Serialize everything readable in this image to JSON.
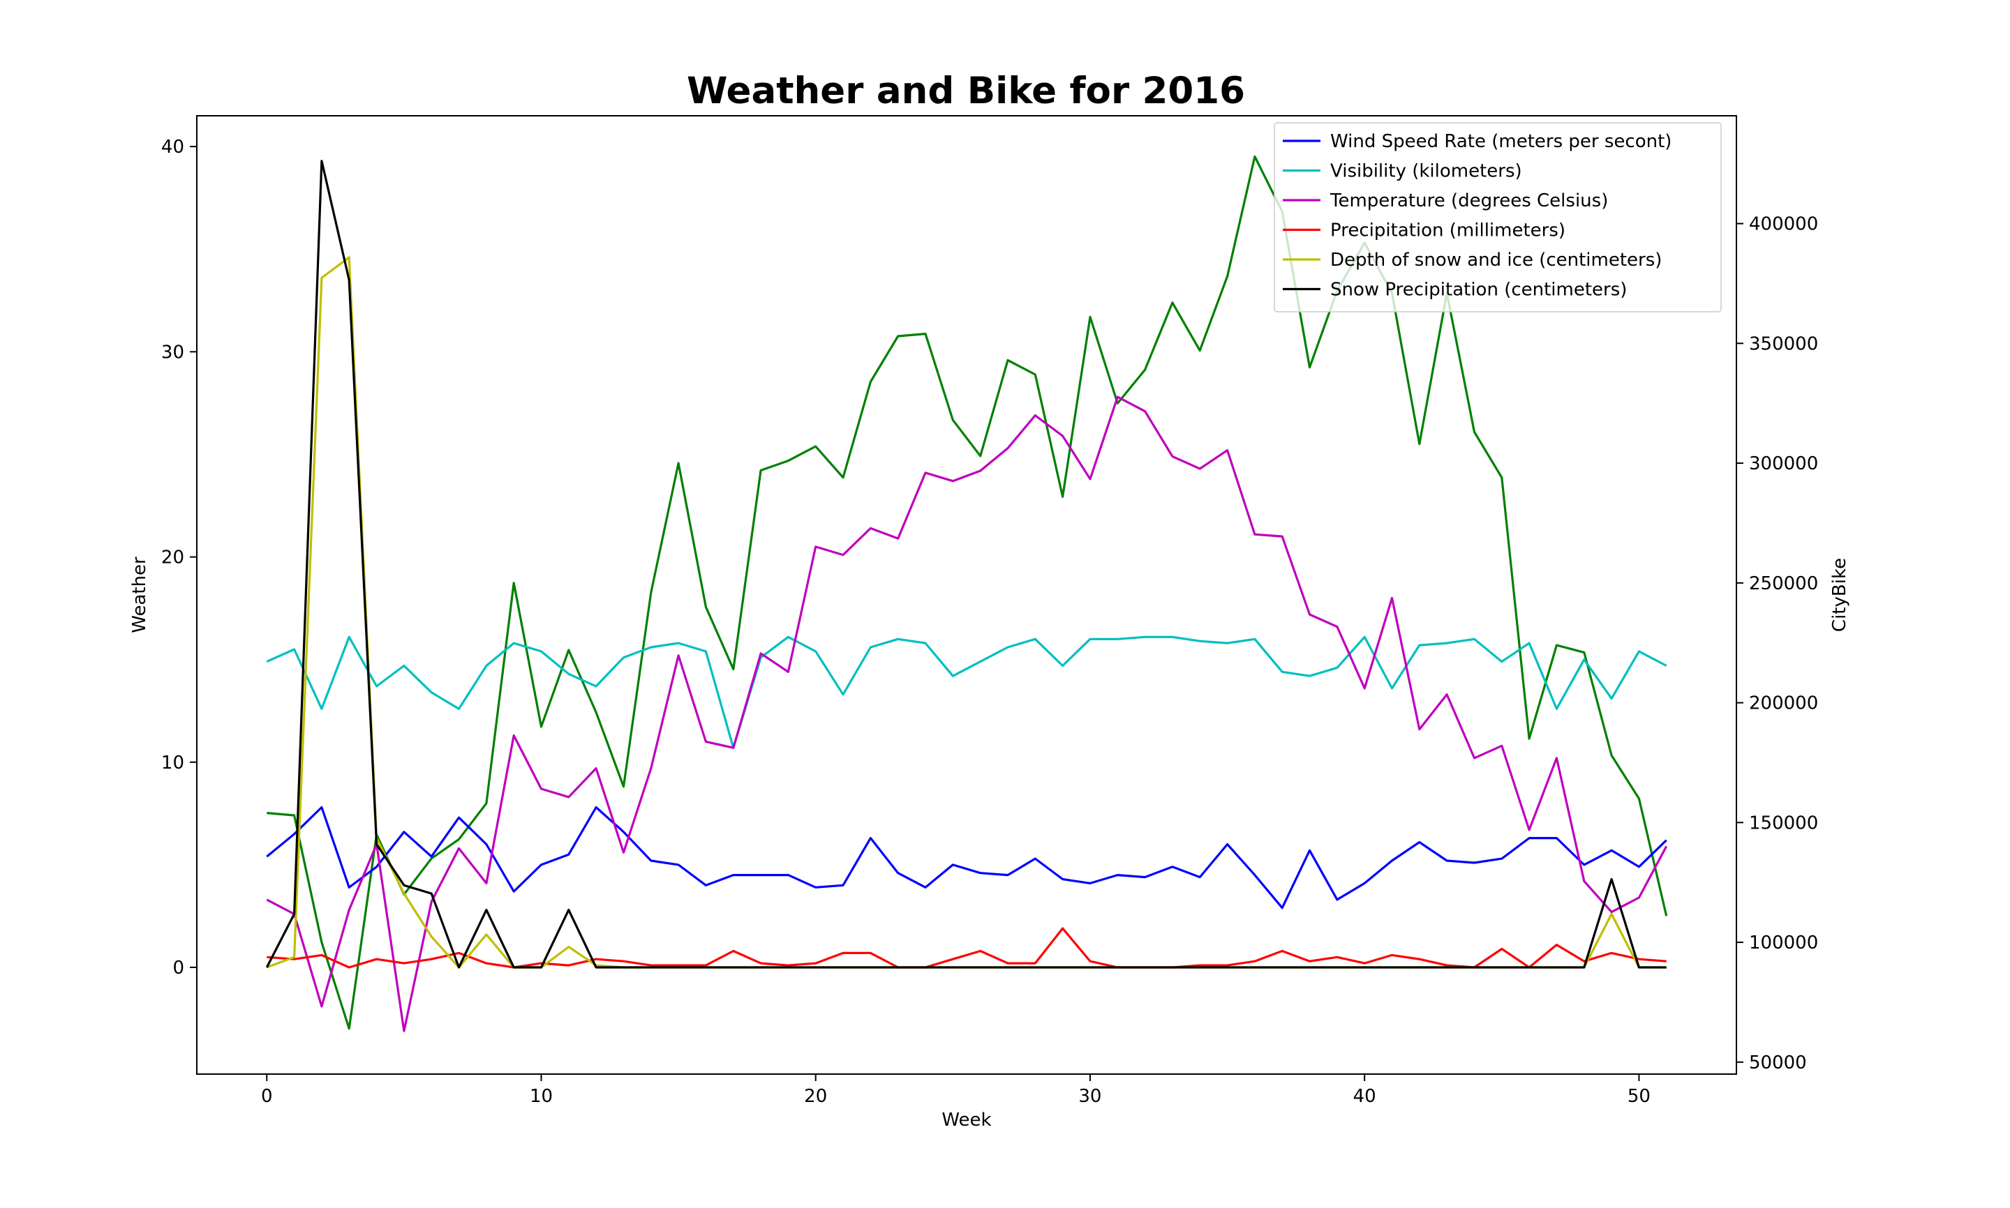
{
  "chart_data": {
    "type": "line",
    "title": "Weather and Bike for 2016",
    "xlabel": "Week",
    "ylabel_left": "Weather",
    "ylabel_right": "CityBike",
    "xlim": [
      -2.55,
      53.55
    ],
    "ylim_left": [
      -5.2,
      41.5
    ],
    "ylim_right": [
      45000,
      445000
    ],
    "xticks": [
      0,
      10,
      20,
      30,
      40,
      50
    ],
    "yticks_left": [
      0,
      10,
      20,
      30,
      40
    ],
    "yticks_right": [
      50000,
      100000,
      150000,
      200000,
      250000,
      300000,
      350000,
      400000
    ],
    "grid": false,
    "legend_position": "top-right",
    "x": [
      0,
      1,
      2,
      3,
      4,
      5,
      6,
      7,
      8,
      9,
      10,
      11,
      12,
      13,
      14,
      15,
      16,
      17,
      18,
      19,
      20,
      21,
      22,
      23,
      24,
      25,
      26,
      27,
      28,
      29,
      30,
      31,
      32,
      33,
      34,
      35,
      36,
      37,
      38,
      39,
      40,
      41,
      42,
      43,
      44,
      45,
      46,
      47,
      48,
      49,
      50,
      51
    ],
    "series": [
      {
        "name": "Wind Speed Rate (meters per secont)",
        "color": "#0000ff",
        "axis": "left",
        "values": [
          5.4,
          6.5,
          7.8,
          3.9,
          4.9,
          6.6,
          5.4,
          7.3,
          6.0,
          3.7,
          5.0,
          5.5,
          7.8,
          6.6,
          5.2,
          5.0,
          4.0,
          4.5,
          4.5,
          4.5,
          3.9,
          4.0,
          6.3,
          4.6,
          3.9,
          5.0,
          4.6,
          4.5,
          5.3,
          4.3,
          4.1,
          4.5,
          4.4,
          4.9,
          4.4,
          6.0,
          4.5,
          2.9,
          5.7,
          3.3,
          4.1,
          5.2,
          6.1,
          5.2,
          5.1,
          5.3,
          6.3,
          6.3,
          5.0,
          5.7,
          4.9,
          6.2
        ]
      },
      {
        "name": "Visibility (kilometers)",
        "color": "#00bfbf",
        "axis": "left",
        "values": [
          14.9,
          15.5,
          12.6,
          16.1,
          13.7,
          14.7,
          13.4,
          12.6,
          14.7,
          15.8,
          15.4,
          14.3,
          13.7,
          15.1,
          15.6,
          15.8,
          15.4,
          10.7,
          15.1,
          16.1,
          15.4,
          13.3,
          15.6,
          16.0,
          15.8,
          14.2,
          14.9,
          15.6,
          16.0,
          14.7,
          16.0,
          16.0,
          16.1,
          16.1,
          15.9,
          15.8,
          16.0,
          14.4,
          14.2,
          14.6,
          16.1,
          13.6,
          15.7,
          15.8,
          16.0,
          14.9,
          15.8,
          12.6,
          15.0,
          13.1,
          15.4,
          14.7
        ]
      },
      {
        "name": "Temperature (degrees Celsius)",
        "color": "#bf00bf",
        "axis": "left",
        "values": [
          3.3,
          2.6,
          -1.9,
          2.8,
          6.0,
          -3.1,
          3.2,
          5.8,
          4.1,
          11.3,
          8.7,
          8.3,
          9.7,
          5.6,
          9.7,
          15.2,
          11.0,
          10.7,
          15.3,
          14.4,
          20.5,
          20.1,
          21.4,
          20.9,
          24.1,
          23.7,
          24.2,
          25.3,
          26.9,
          25.9,
          23.8,
          27.8,
          27.1,
          24.9,
          24.3,
          25.2,
          21.1,
          21.0,
          17.2,
          16.6,
          13.6,
          18.0,
          11.6,
          13.3,
          10.2,
          10.8,
          6.7,
          10.2,
          4.2,
          2.7,
          3.4,
          5.9
        ]
      },
      {
        "name": "Precipitation (millimeters)",
        "color": "#ff0000",
        "axis": "left",
        "values": [
          0.5,
          0.4,
          0.6,
          0.0,
          0.4,
          0.2,
          0.4,
          0.7,
          0.2,
          0.0,
          0.2,
          0.1,
          0.4,
          0.3,
          0.1,
          0.1,
          0.1,
          0.8,
          0.2,
          0.1,
          0.2,
          0.7,
          0.7,
          0.0,
          0.0,
          0.4,
          0.8,
          0.2,
          0.2,
          1.9,
          0.3,
          0.0,
          0.0,
          0.0,
          0.1,
          0.1,
          0.3,
          0.8,
          0.3,
          0.5,
          0.2,
          0.6,
          0.4,
          0.1,
          0.0,
          0.9,
          0.0,
          1.1,
          0.3,
          0.7,
          0.4,
          0.3
        ]
      },
      {
        "name": "Depth of snow and ice (centimeters)",
        "color": "#bfbf00",
        "axis": "left",
        "values": [
          0.0,
          0.5,
          33.6,
          34.6,
          6.3,
          3.6,
          1.5,
          0.0,
          1.6,
          0.0,
          0.0,
          1.0,
          0.1,
          0.0,
          0.0,
          0.0,
          0.0,
          0.0,
          0.0,
          0.0,
          0.0,
          0.0,
          0.0,
          0.0,
          0.0,
          0.0,
          0.0,
          0.0,
          0.0,
          0.0,
          0.0,
          0.0,
          0.0,
          0.0,
          0.0,
          0.0,
          0.0,
          0.0,
          0.0,
          0.0,
          0.0,
          0.0,
          0.0,
          0.0,
          0.0,
          0.0,
          0.0,
          0.0,
          0.0,
          2.6,
          0.0,
          0.0
        ]
      },
      {
        "name": "Snow Precipitation (centimeters)",
        "color": "#000000",
        "axis": "left",
        "values": [
          0.0,
          2.6,
          39.3,
          33.5,
          6.0,
          4.0,
          3.6,
          0.0,
          2.8,
          0.0,
          0.0,
          2.8,
          0.0,
          0.0,
          0.0,
          0.0,
          0.0,
          0.0,
          0.0,
          0.0,
          0.0,
          0.0,
          0.0,
          0.0,
          0.0,
          0.0,
          0.0,
          0.0,
          0.0,
          0.0,
          0.0,
          0.0,
          0.0,
          0.0,
          0.0,
          0.0,
          0.0,
          0.0,
          0.0,
          0.0,
          0.0,
          0.0,
          0.0,
          0.0,
          0.0,
          0.0,
          0.0,
          0.0,
          0.0,
          4.3,
          0.0,
          0.0
        ]
      },
      {
        "color": "#008000",
        "axis": "right",
        "values": [
          154000,
          153000,
          100000,
          64000,
          145000,
          120000,
          135000,
          143000,
          158000,
          250000,
          190000,
          222000,
          196000,
          165000,
          246000,
          300000,
          240000,
          214000,
          297000,
          301000,
          307000,
          294000,
          334000,
          353000,
          354000,
          318000,
          303000,
          343000,
          337000,
          286000,
          361000,
          325000,
          339000,
          367000,
          347000,
          378000,
          428000,
          405000,
          340000,
          372000,
          392000,
          371000,
          308000,
          371000,
          313000,
          294000,
          185000,
          224000,
          221000,
          178000,
          160000,
          111000
        ]
      }
    ]
  }
}
